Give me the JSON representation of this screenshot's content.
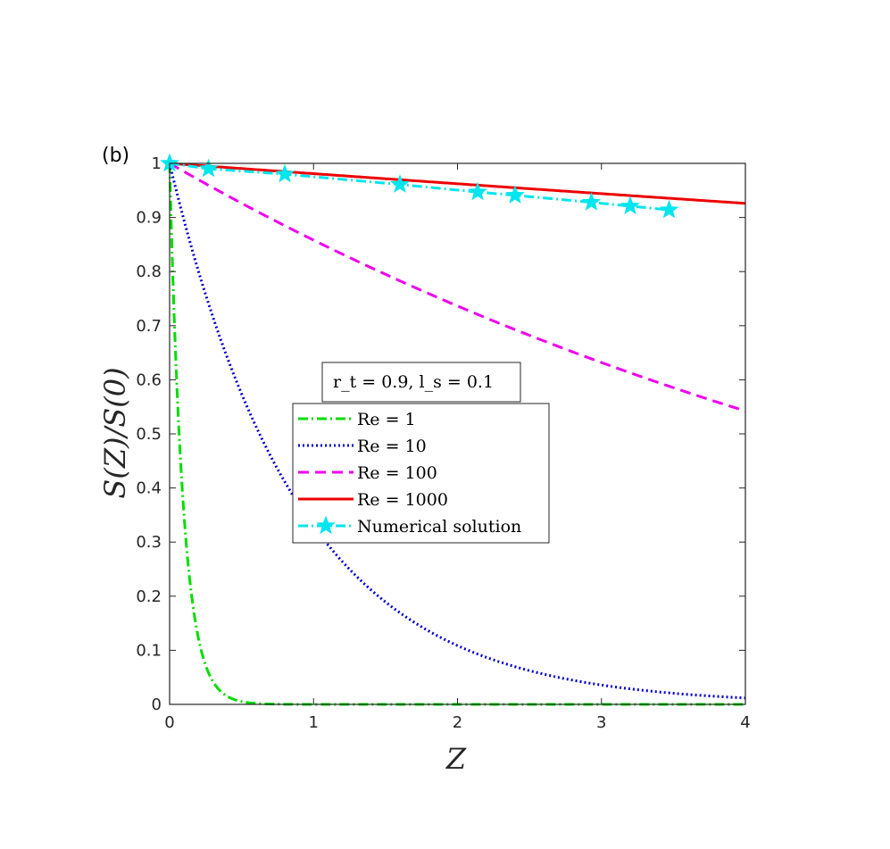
{
  "chart_data": {
    "type": "line",
    "panel_label": "(b)",
    "xlabel": "Z",
    "ylabel": "S(Z)/S(0)",
    "xlim": [
      0,
      4
    ],
    "ylim": [
      0,
      1
    ],
    "xticks": [
      0,
      1,
      2,
      3,
      4
    ],
    "xtick_labels": [
      "0",
      "1",
      "2",
      "3",
      "4"
    ],
    "yticks": [
      0,
      0.1,
      0.2,
      0.3,
      0.4,
      0.5,
      0.6,
      0.7,
      0.8,
      0.9,
      1
    ],
    "ytick_labels": [
      "0",
      "0.1",
      "0.2",
      "0.3",
      "0.4",
      "0.5",
      "0.6",
      "0.7",
      "0.8",
      "0.9",
      "1"
    ],
    "grid": false,
    "annotation": "r_t = 0.9, l_s = 0.1",
    "legend_position": "center",
    "series": [
      {
        "name": "Re = 1",
        "color": "#00dd00",
        "dash": "dashdot",
        "decay_rate": 10.5,
        "x": [
          0,
          0.05,
          0.1,
          0.15,
          0.2,
          0.25,
          0.3,
          0.35,
          0.4,
          0.5,
          0.6,
          0.8,
          1,
          1.5,
          2,
          2.5,
          3,
          3.5,
          4
        ],
        "values": [
          1,
          0.59,
          0.35,
          0.207,
          0.122,
          0.072,
          0.043,
          0.025,
          0.015,
          0.005,
          0.002,
          0,
          0,
          0,
          0,
          0,
          0,
          0,
          0
        ]
      },
      {
        "name": "Re = 10",
        "color": "#0000cc",
        "dash": "dotted",
        "decay_rate": 1.11,
        "x": [
          0,
          0.1,
          0.2,
          0.3,
          0.5,
          0.75,
          1,
          1.25,
          1.5,
          2,
          2.5,
          3,
          3.5,
          4
        ],
        "values": [
          1,
          0.895,
          0.801,
          0.717,
          0.574,
          0.435,
          0.33,
          0.25,
          0.189,
          0.109,
          0.062,
          0.036,
          0.021,
          0.012
        ]
      },
      {
        "name": "Re = 100",
        "color": "#ee00ee",
        "dash": "dashed",
        "decay_rate": 0.153,
        "x": [
          0,
          0.5,
          1,
          1.5,
          2,
          2.5,
          3,
          3.5,
          4
        ],
        "values": [
          1,
          0.927,
          0.858,
          0.795,
          0.736,
          0.682,
          0.632,
          0.585,
          0.542
        ]
      },
      {
        "name": "Re = 1000",
        "color": "#ee0000",
        "dash": "solid",
        "decay_rate": 0.0192,
        "x": [
          0,
          1,
          2,
          3,
          4
        ],
        "values": [
          1,
          0.981,
          0.962,
          0.944,
          0.926
        ]
      },
      {
        "name": "Numerical solution",
        "color": "#00e5ee",
        "dash": "dashdot",
        "marker": "star",
        "x": [
          0,
          0.27,
          0.8,
          1.6,
          2.14,
          2.4,
          2.93,
          3.2,
          3.47
        ],
        "values": [
          1,
          0.99,
          0.98,
          0.961,
          0.947,
          0.941,
          0.928,
          0.921,
          0.914
        ]
      }
    ]
  }
}
